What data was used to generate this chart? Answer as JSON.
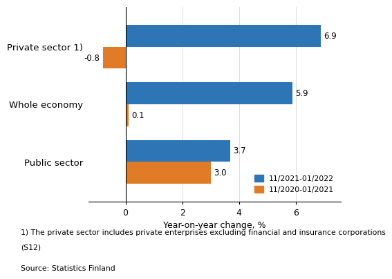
{
  "categories": [
    "Public sector",
    "Whole economy",
    "Private sector 1)"
  ],
  "series": [
    {
      "label": "11/2021-01/2022",
      "color": "#2E75B6",
      "values": [
        3.7,
        5.9,
        6.9
      ]
    },
    {
      "label": "11/2020-01/2021",
      "color": "#E07B28",
      "values": [
        3.0,
        0.1,
        -0.8
      ]
    }
  ],
  "xlabel": "Year-on-year change, %",
  "xlim": [
    -1.3,
    7.6
  ],
  "xticks": [
    0,
    2,
    4,
    6
  ],
  "footnote_line1": "1) The private sector includes private enterprises excluding financial and insurance corporations",
  "footnote_line2": "(S12)",
  "source": "Source: Statistics Finland",
  "bar_height": 0.38
}
